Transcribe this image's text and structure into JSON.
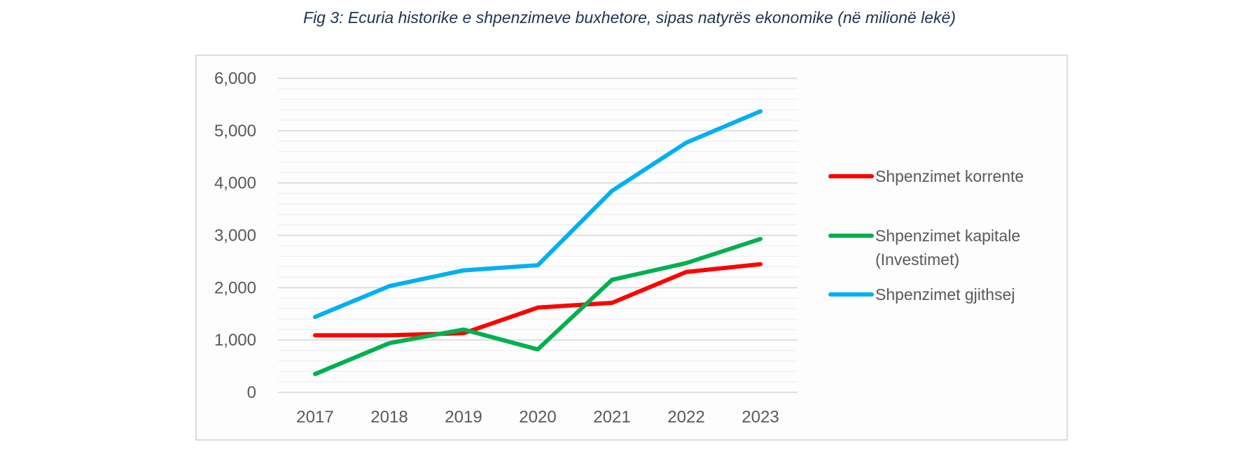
{
  "title": "Fig 3: Ecuria historike e shpenzimeve buxhetore, sipas natyrës ekonomike  (në milionë lekë)",
  "chart_data": {
    "type": "line",
    "title": "Fig 3: Ecuria historike e shpenzimeve buxhetore, sipas natyrës ekonomike  (në milionë lekë)",
    "xlabel": "",
    "ylabel": "",
    "categories": [
      "2017",
      "2018",
      "2019",
      "2020",
      "2021",
      "2022",
      "2023"
    ],
    "ylim": [
      0,
      6000
    ],
    "yticks": [
      0,
      1000,
      2000,
      3000,
      4000,
      5000,
      6000
    ],
    "ytick_labels": [
      "0",
      "1,000",
      "2,000",
      "3,000",
      "4,000",
      "5,000",
      "6,000"
    ],
    "grid": true,
    "legend_position": "right",
    "series": [
      {
        "name": "Shpenzimet korrente",
        "name_lines": [
          "Shpenzimet korrente"
        ],
        "color": "#ff0000",
        "values": [
          1090,
          1090,
          1130,
          1620,
          1710,
          2300,
          2450
        ]
      },
      {
        "name": "Shpenzimet kapitale (Investimet)",
        "name_lines": [
          "Shpenzimet kapitale",
          "(Investimet)"
        ],
        "color": "#00b050",
        "values": [
          350,
          940,
          1200,
          820,
          2150,
          2470,
          2930
        ]
      },
      {
        "name": "Shpenzimet gjithsej",
        "name_lines": [
          "Shpenzimet gjithsej"
        ],
        "color": "#00b0f0",
        "values": [
          1440,
          2030,
          2330,
          2430,
          3850,
          4770,
          5370
        ]
      }
    ]
  }
}
